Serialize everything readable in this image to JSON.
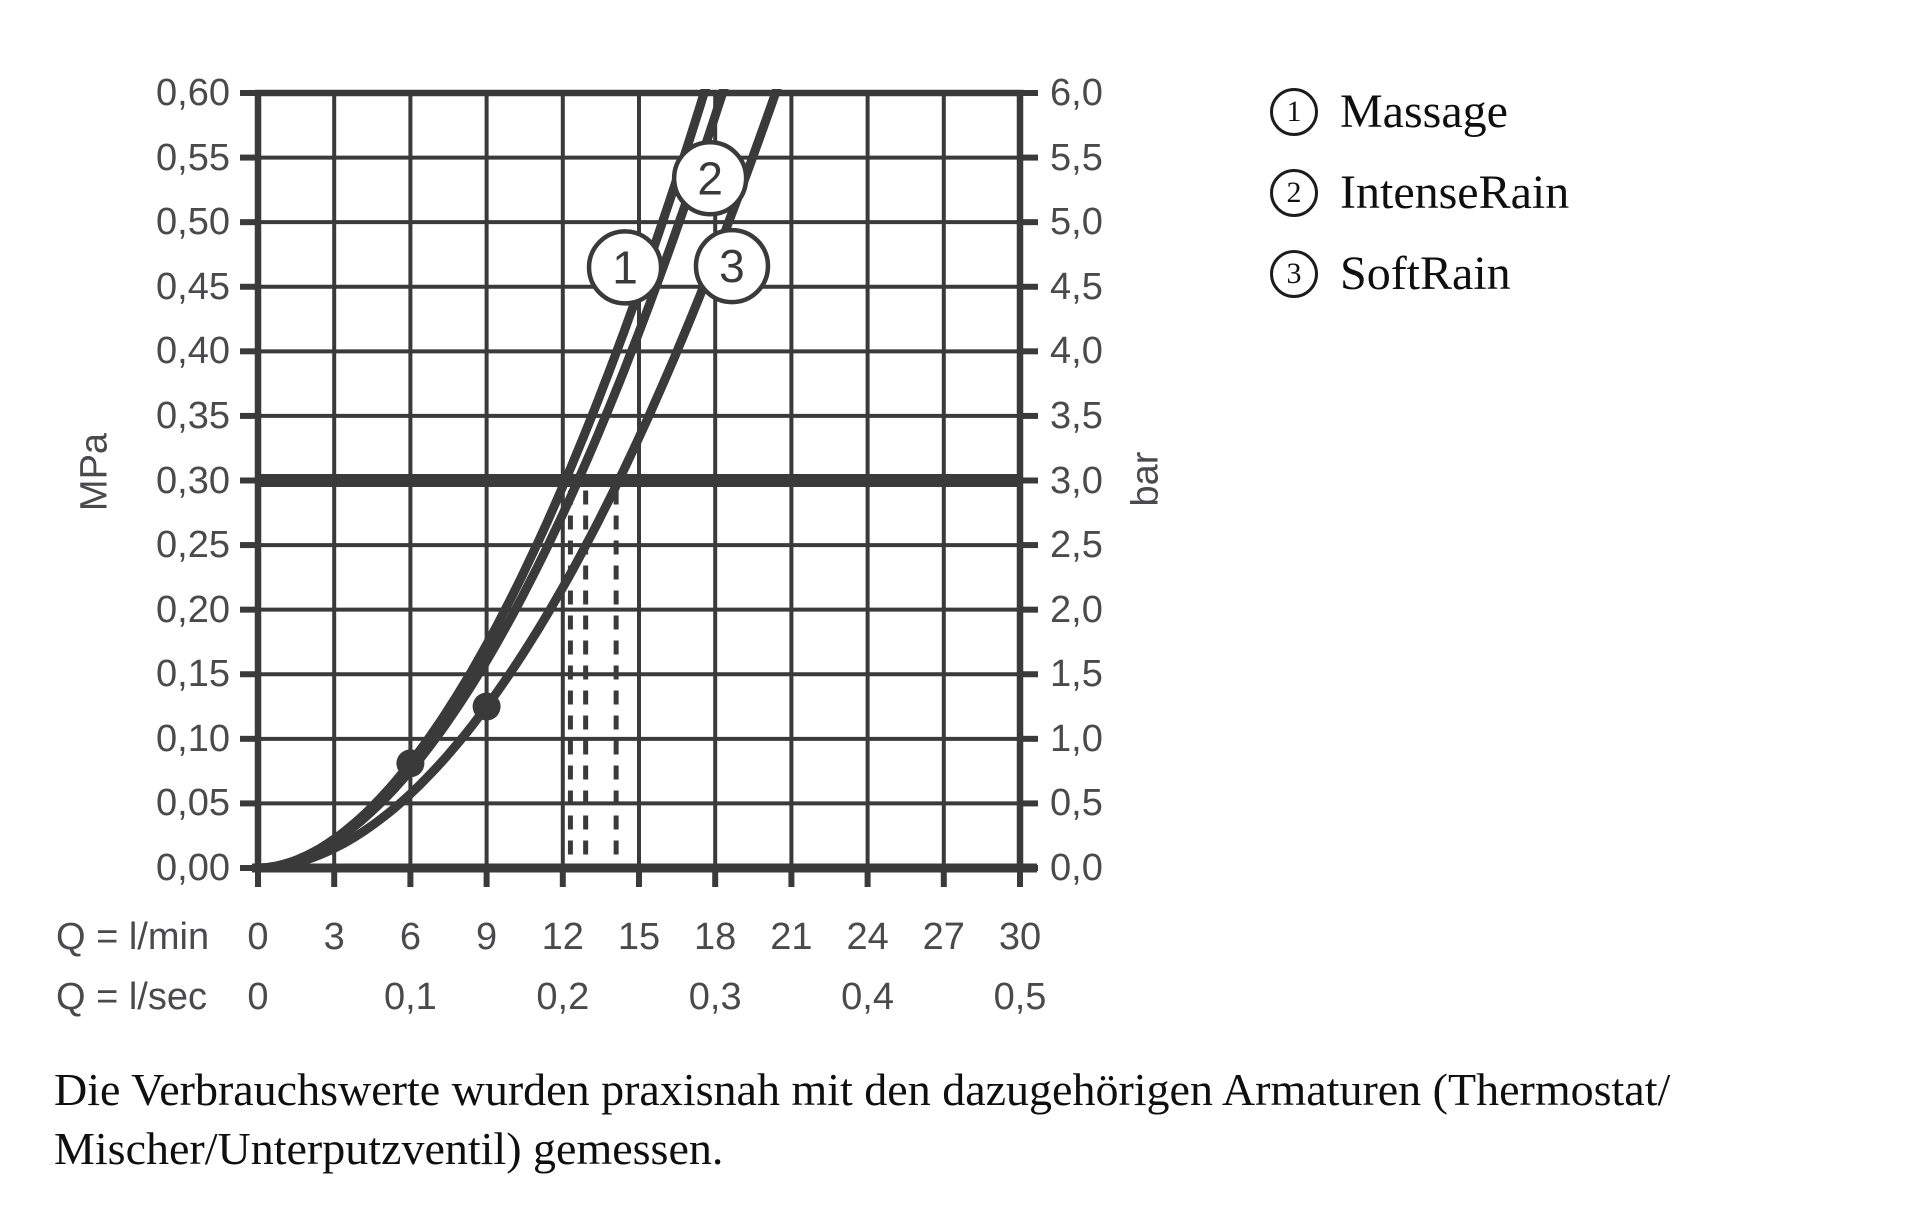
{
  "chart_data": {
    "type": "line",
    "title": "",
    "line_color": "#3a3a3b",
    "text_color": "#4a4a4c",
    "y_left": {
      "unit": "MPa",
      "min": 0,
      "max": 0.6,
      "step": 0.05,
      "ticks": [
        "0,60",
        "0,55",
        "0,50",
        "0,45",
        "0,40",
        "0,35",
        "0,30",
        "0,25",
        "0,20",
        "0,15",
        "0,10",
        "0,05",
        "0,00"
      ]
    },
    "y_right": {
      "unit": "bar",
      "min": 0,
      "max": 6.0,
      "step": 0.5,
      "ticks": [
        "6,0",
        "5,5",
        "5,0",
        "4,5",
        "4,0",
        "3,5",
        "3,0",
        "2,5",
        "2,0",
        "1,5",
        "1,0",
        "0,5",
        "0,0"
      ]
    },
    "x_axis": {
      "row1_label": "Q = l/min",
      "row1_ticks": [
        "0",
        "3",
        "6",
        "9",
        "12",
        "15",
        "18",
        "21",
        "24",
        "27",
        "30"
      ],
      "row2_label": "Q = l/sec",
      "row2_ticks": [
        "0",
        "0,1",
        "0,2",
        "0,3",
        "0,4",
        "0,5"
      ],
      "min": 0,
      "max": 30,
      "gridline_step_lmin": 3
    },
    "series": [
      {
        "num": "1",
        "name": "Massage",
        "q_at_3bar_lmin": 12.1,
        "exponent": 1.86
      },
      {
        "num": "2",
        "name": "IntenseRain",
        "q_at_3bar_lmin": 12.6,
        "exponent": 1.86
      },
      {
        "num": "3",
        "name": "SoftRain",
        "q_at_3bar_lmin": 14.2,
        "exponent": 1.92
      }
    ],
    "curve_labels": [
      {
        "text": "1",
        "q": 14.45,
        "p": 0.465
      },
      {
        "text": "2",
        "q": 17.8,
        "p": 0.534
      },
      {
        "text": "3",
        "q": 18.66,
        "p": 0.466
      }
    ],
    "reference_line": {
      "p_mpa": 0.3,
      "p_bar": 3.0
    },
    "dashed_flow_lines_lmin": [
      12.3,
      12.9,
      14.1
    ],
    "measurement_dots": [
      {
        "q_lmin": 6,
        "p_mpa": 0.081
      },
      {
        "q_lmin": 9,
        "p_mpa": 0.125
      }
    ]
  },
  "legend": {
    "items": [
      {
        "num": "1",
        "label": "Massage"
      },
      {
        "num": "2",
        "label": "IntenseRain"
      },
      {
        "num": "3",
        "label": "SoftRain"
      }
    ]
  },
  "footnote": {
    "line1": "Die Verbrauchswerte wurden praxisnah mit den dazugehörigen Armaturen (Thermostat/",
    "line2": "Mischer/Unterputzventil) gemessen."
  }
}
